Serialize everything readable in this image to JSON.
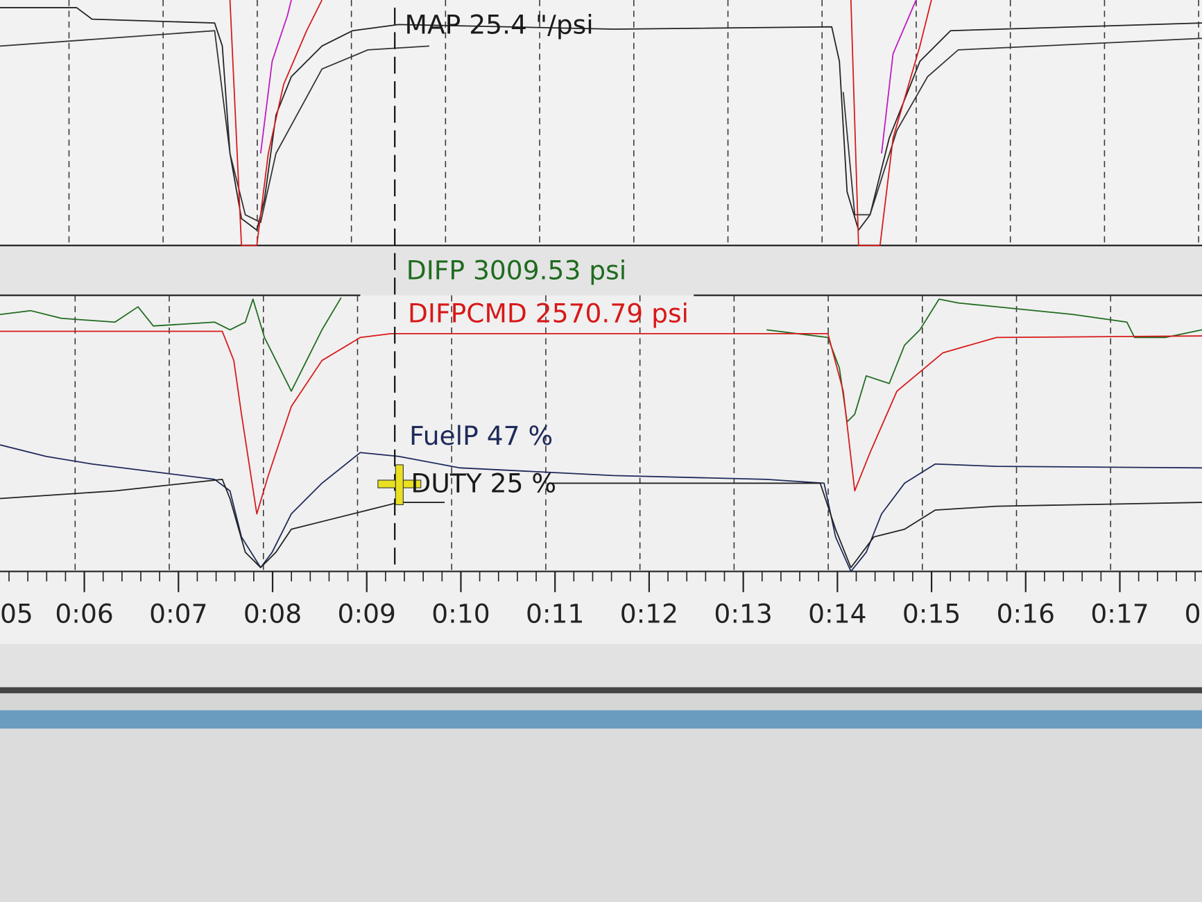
{
  "readouts": [
    {
      "label": "MAP 25.4 \"/psi",
      "color": "#1a1a1a"
    },
    {
      "label": "DIFP 3009.53 psi",
      "color": "#1f6b1f"
    },
    {
      "label": "DIFPCMD 2570.79 psi",
      "color": "#d81818"
    },
    {
      "label": "FuelP 47 %",
      "color": "#1e2a5a"
    },
    {
      "label": "DUTY 25 %",
      "color": "#1a1a1a"
    }
  ],
  "time_axis": {
    "ticks": [
      "05",
      "0:06",
      "0:07",
      "0:08",
      "0:09",
      "0:10",
      "0:11",
      "0:12",
      "0:13",
      "0:14",
      "0:15",
      "0:16",
      "0:17",
      "0:"
    ]
  }
}
